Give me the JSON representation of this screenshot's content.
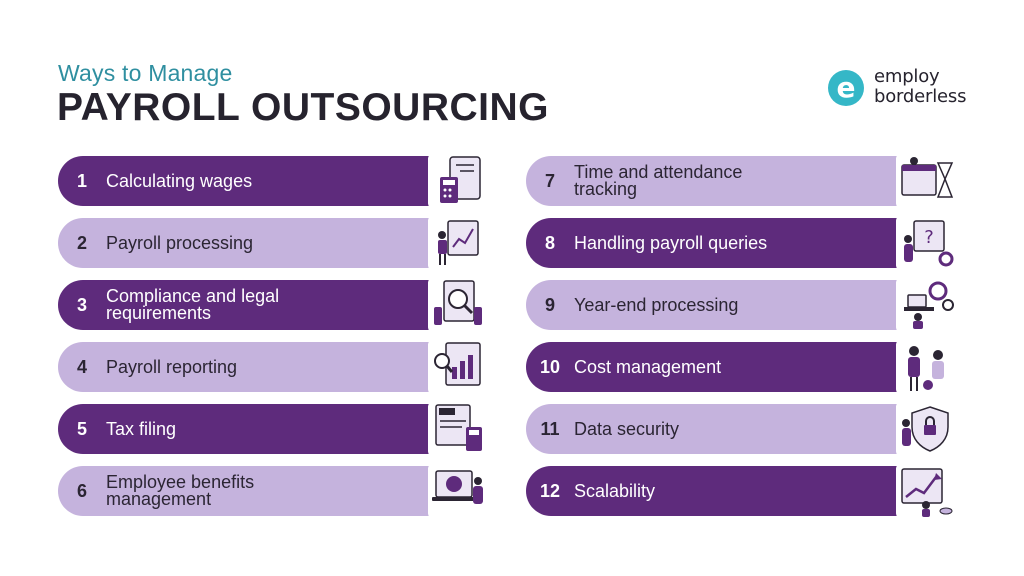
{
  "header": {
    "subtitle": "Ways to Manage",
    "title": "PAYROLL OUTSOURCING"
  },
  "logo": {
    "mark": "e",
    "line1": "employ",
    "line2": "borderless",
    "color": "#35b7c7"
  },
  "colors": {
    "dark_pill": "#5e2b7c",
    "light_pill": "#c5b3dd",
    "subtitle": "#2f8fa0",
    "title": "#26232e"
  },
  "items": [
    {
      "num": "1",
      "label": "Calculating wages",
      "style": "dark",
      "icon": "calculator-clipboard-icon"
    },
    {
      "num": "2",
      "label": "Payroll processing",
      "style": "light",
      "icon": "presentation-board-icon"
    },
    {
      "num": "3",
      "label": "Compliance and legal requirements",
      "style": "dark",
      "icon": "magnifier-document-icon"
    },
    {
      "num": "4",
      "label": "Payroll reporting",
      "style": "light",
      "icon": "report-chart-icon"
    },
    {
      "num": "5",
      "label": "Tax filing",
      "style": "dark",
      "icon": "tax-form-icon"
    },
    {
      "num": "6",
      "label": "Employee benefits management",
      "style": "light",
      "icon": "benefits-laptop-icon"
    },
    {
      "num": "7",
      "label": "Time and attendance tracking",
      "style": "light",
      "icon": "hourglass-calendar-icon"
    },
    {
      "num": "8",
      "label": "Handling payroll queries",
      "style": "dark",
      "icon": "query-gears-icon"
    },
    {
      "num": "9",
      "label": "Year-end processing",
      "style": "light",
      "icon": "desk-gears-icon"
    },
    {
      "num": "10",
      "label": "Cost management",
      "style": "dark",
      "icon": "cost-people-icon"
    },
    {
      "num": "11",
      "label": "Data security",
      "style": "light",
      "icon": "shield-lock-icon"
    },
    {
      "num": "12",
      "label": "Scalability",
      "style": "dark",
      "icon": "growth-chart-icon"
    }
  ]
}
